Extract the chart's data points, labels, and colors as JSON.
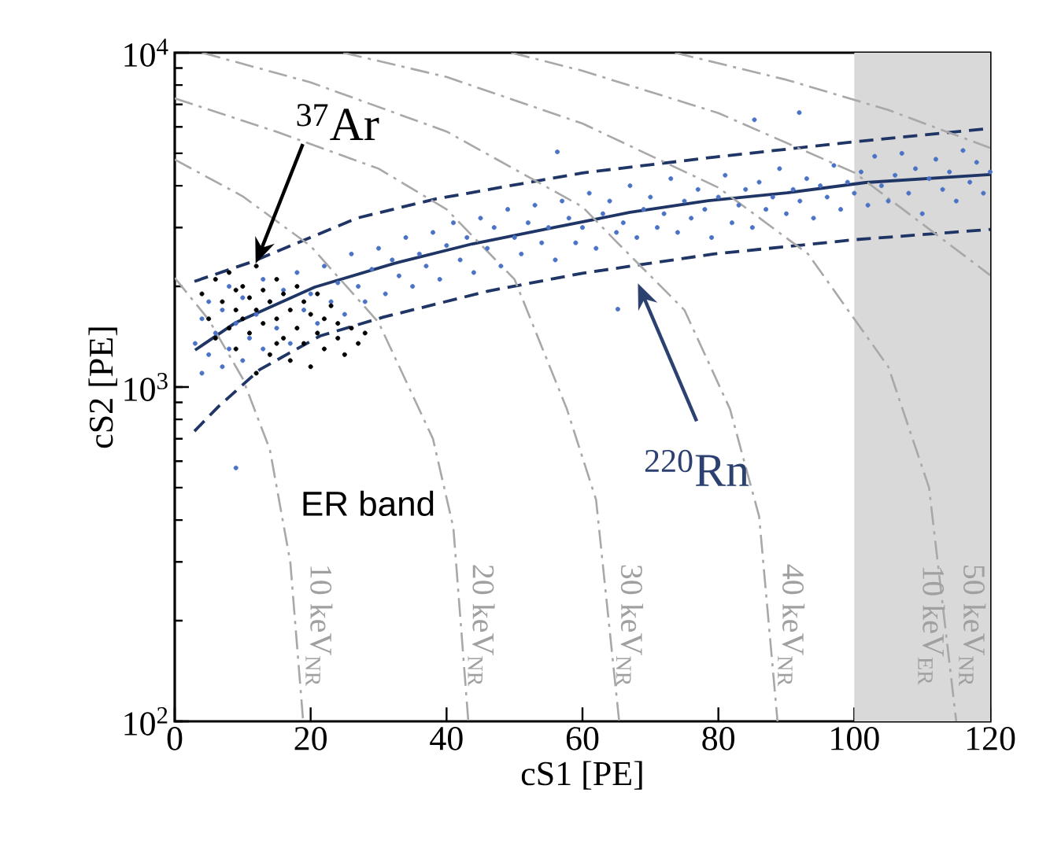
{
  "chart_data": {
    "type": "scatter",
    "xlabel": "cS1 [PE]",
    "ylabel": "cS2 [PE]",
    "log": "y",
    "xlim": [
      0,
      120
    ],
    "ylim": [
      100,
      10000
    ],
    "xticks": [
      0,
      20,
      40,
      60,
      80,
      100,
      120
    ],
    "yticks": [
      {
        "value": 100,
        "label": "10$^{2}$"
      },
      {
        "value": 1000,
        "label": "10$^{3}$"
      },
      {
        "value": 10000,
        "label": "10$^{4}$"
      }
    ],
    "bands": [
      {
        "axis": "x",
        "from": 100,
        "to": 120,
        "color": "#d9d9d9"
      }
    ],
    "annotations": [
      {
        "text": "$^{37}$Ar",
        "x": 11.9,
        "y": 2340
      },
      "$^{220}$Rn",
      "ER band",
      "10 keV$_{NR}$",
      "20 keV$_{NR}$",
      "30 keV$_{NR}$",
      "40 keV$_{NR}$",
      "10 keV$_{ER}$",
      "50 keV$_{NR}$"
    ],
    "series": [
      {
        "marker": "circle",
        "color": "#4b73c5",
        "x": [
          3,
          4,
          4,
          5,
          5,
          6,
          7,
          7,
          8,
          8,
          9,
          10,
          10,
          11,
          12,
          13,
          13,
          14,
          15,
          16,
          17,
          18,
          19,
          20,
          21,
          22,
          23,
          24,
          25,
          26,
          27,
          28,
          29,
          30,
          31,
          32,
          33,
          34,
          35,
          36,
          37,
          38,
          39,
          40,
          41,
          42,
          43,
          44,
          45,
          46,
          47,
          48,
          49,
          50,
          51,
          52,
          53,
          54,
          55,
          56,
          57,
          58,
          59,
          60,
          61,
          62,
          63,
          64,
          65,
          66,
          67,
          68,
          69,
          70,
          71,
          72,
          73,
          74,
          75,
          76,
          77,
          78,
          79,
          80,
          81,
          82,
          83,
          84,
          85,
          86,
          87,
          88,
          89,
          90,
          91,
          92,
          93,
          94,
          95,
          96,
          97,
          98,
          99,
          100,
          101,
          102,
          103,
          104,
          105,
          106,
          107,
          108,
          109,
          110,
          111,
          112,
          113,
          114,
          115,
          116,
          117,
          118,
          119,
          120,
          9,
          85.3,
          91.9,
          56.3,
          65.2
        ],
        "values": [
          1350,
          1600,
          1100,
          1800,
          1250,
          1450,
          1700,
          1150,
          2000,
          1300,
          1550,
          1850,
          1200,
          1400,
          1650,
          2100,
          1300,
          1800,
          1500,
          1950,
          1350,
          2200,
          1700,
          1900,
          1550,
          2300,
          1800,
          2050,
          1650,
          2500,
          2000,
          1800,
          2250,
          2600,
          1900,
          2400,
          2150,
          2800,
          2000,
          2500,
          2300,
          2900,
          2100,
          2650,
          3100,
          2400,
          2800,
          2200,
          3200,
          2600,
          3000,
          2300,
          3400,
          2800,
          2500,
          3100,
          3500,
          2700,
          3000,
          2400,
          3600,
          3200,
          2700,
          3000,
          3800,
          2600,
          3300,
          3600,
          2900,
          3100,
          4000,
          2800,
          3400,
          3700,
          3000,
          3300,
          4200,
          2900,
          3600,
          3200,
          3900,
          3400,
          2800,
          3700,
          4300,
          3100,
          3500,
          3900,
          3000,
          4100,
          3400,
          3700,
          4500,
          3300,
          3900,
          3600,
          4200,
          3200,
          4000,
          3700,
          4600,
          3400,
          4100,
          3800,
          4400,
          3500,
          4900,
          4000,
          3600,
          4300,
          5000,
          3800,
          4500,
          3300,
          4200,
          4800,
          3900,
          4400,
          3600,
          5100,
          4100,
          4700,
          3800,
          4400,
          573,
          6300,
          6620,
          5050,
          1710
        ]
      },
      {
        "marker": "circle",
        "color": "#000000",
        "x": [
          4,
          5,
          6,
          6,
          7,
          8,
          8,
          9,
          9,
          10,
          10,
          11,
          11,
          12,
          12,
          13,
          13,
          14,
          14,
          15,
          15,
          16,
          16,
          17,
          17,
          18,
          18,
          19,
          19,
          20,
          20,
          21,
          21,
          22,
          22,
          23,
          24,
          24,
          25,
          26,
          27,
          28,
          12,
          9,
          15
        ],
        "values": [
          1900,
          1600,
          2100,
          1400,
          1800,
          1500,
          2200,
          1700,
          1300,
          2000,
          1600,
          1850,
          1450,
          2300,
          1700,
          1550,
          1950,
          1250,
          1800,
          2100,
          1600,
          1400,
          1900,
          1700,
          1200,
          2000,
          1500,
          1800,
          1350,
          1650,
          1150,
          1900,
          1450,
          1600,
          1300,
          1750,
          1400,
          1550,
          1250,
          1500,
          1350,
          1450,
          1100,
          1950,
          1350
        ]
      },
      {
        "type": "line",
        "line_style": "solid",
        "color": "#1e3565",
        "x": [
          3,
          9,
          20.6,
          32.2,
          43.8,
          55.4,
          67,
          78.5,
          90.1,
          101.7,
          120
        ],
        "values": [
          1290,
          1560,
          1990,
          2340,
          2680,
          2990,
          3330,
          3610,
          3810,
          4090,
          4320
        ]
      },
      {
        "type": "line",
        "line_style": "dashed",
        "color": "#1e3565",
        "x": [
          2.9,
          11.4,
          26.8,
          38.3,
          60,
          79.3,
          100.2,
          120
        ],
        "values": [
          2070,
          2370,
          3200,
          3650,
          4370,
          4870,
          5420,
          5940
        ]
      },
      {
        "type": "line",
        "line_style": "dashed",
        "color": "#1e3565",
        "x": [
          2.9,
          6.4,
          12.5,
          21.4,
          30.7,
          46.1,
          60,
          79.3,
          100.2,
          120
        ],
        "values": [
          738,
          873,
          1127,
          1422,
          1618,
          1936,
          2190,
          2500,
          2760,
          2960
        ]
      },
      {
        "type": "line",
        "line_style": "dashdot",
        "color": "#a8a8a8",
        "x": [
          0,
          5,
          10,
          14,
          17,
          18.9
        ],
        "values": [
          2120,
          1590,
          1060,
          650,
          300,
          100
        ]
      },
      {
        "type": "line",
        "line_style": "dashdot",
        "color": "#a8a8a8",
        "x": [
          0,
          10,
          20,
          30,
          38,
          41,
          43.2
        ],
        "values": [
          4790,
          3720,
          2640,
          1560,
          700,
          380,
          100
        ]
      },
      {
        "type": "line",
        "line_style": "dashdot",
        "color": "#a8a8a8",
        "x": [
          0,
          15,
          30,
          40,
          50,
          57.7,
          62,
          65.4
        ],
        "values": [
          7300,
          5800,
          4500,
          3400,
          2100,
          860,
          460,
          100
        ]
      },
      {
        "type": "line",
        "line_style": "dashdot",
        "color": "#a8a8a8",
        "x": [
          4,
          20,
          40,
          60,
          65,
          75,
          81.7,
          86,
          88.7
        ],
        "values": [
          10000,
          8150,
          5810,
          3460,
          2720,
          1700,
          860,
          410,
          100
        ]
      },
      {
        "type": "line",
        "line_style": "dashdot",
        "color": "#a8a8a8",
        "x": [
          24.8,
          40,
          60,
          80,
          93.2,
          105,
          111,
          115
        ],
        "values": [
          10000,
          8460,
          6140,
          3950,
          2500,
          1150,
          500,
          100
        ]
      },
      {
        "type": "line",
        "line_style": "dashdot",
        "color": "#a8a8a8",
        "x": [
          49.5,
          60,
          80,
          100,
          120
        ],
        "values": [
          10000,
          8830,
          6600,
          4380,
          2160
        ]
      },
      {
        "type": "line",
        "line_style": "dashdot",
        "color": "#a8a8a8",
        "x": [
          73.6,
          90,
          105,
          120
        ],
        "values": [
          10000,
          8300,
          6740,
          5190
        ]
      }
    ]
  }
}
